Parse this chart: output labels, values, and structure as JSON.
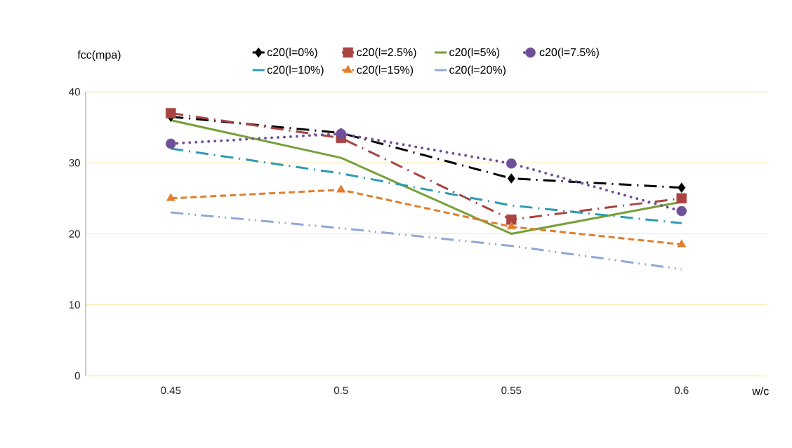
{
  "chart_data": {
    "type": "line",
    "xlabel": "w/c",
    "ylabel": "fcc(mpa)",
    "categories": [
      "0.45",
      "0.5",
      "0.55",
      "0.6"
    ],
    "ylim": [
      0,
      40
    ],
    "yticks": [
      0,
      10,
      20,
      30,
      40
    ],
    "grid": "y",
    "legend": "top",
    "series": [
      {
        "name": "c20(l=0%)",
        "color": "#000000",
        "marker": "diamond",
        "line_style": "dashdot",
        "values": [
          36.5,
          34.2,
          27.8,
          26.5
        ]
      },
      {
        "name": "c20(l=2.5%)",
        "color": "#a94442",
        "marker": "square",
        "line_style": "dashdot",
        "values": [
          37,
          33.5,
          22,
          25
        ]
      },
      {
        "name": "c20(l=5%)",
        "color": "#77a03a",
        "marker": "none",
        "line_style": "solid",
        "values": [
          36,
          30.7,
          20,
          24.5
        ]
      },
      {
        "name": "c20(l=7.5%)",
        "color": "#6f4f9a",
        "marker": "circle",
        "line_style": "dotted",
        "values": [
          32.7,
          34.1,
          29.9,
          23.2
        ]
      },
      {
        "name": "c20(l=10%)",
        "color": "#2e9ab3",
        "marker": "none",
        "line_style": "dashdot",
        "values": [
          32,
          28.5,
          24,
          21.5
        ]
      },
      {
        "name": "c20(l=15%)",
        "color": "#e07f2e",
        "marker": "triangle",
        "line_style": "dashed",
        "values": [
          25,
          26.2,
          21,
          18.5
        ]
      },
      {
        "name": "c20(l=20%)",
        "color": "#8ea8d6",
        "marker": "none",
        "line_style": "dashdotdot",
        "values": [
          23,
          20.8,
          18.3,
          15
        ]
      }
    ]
  }
}
